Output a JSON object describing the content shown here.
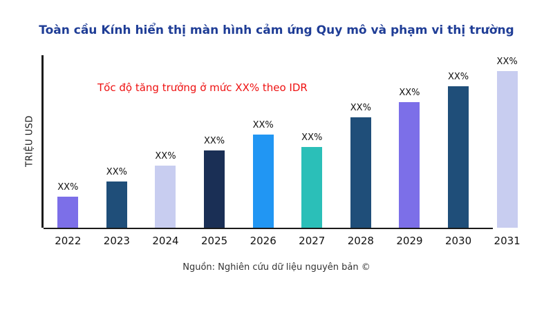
{
  "title": "Toàn cầu Kính hiển thị màn hình cảm ứng Quy mô và phạm vi thị trường",
  "annotation": "Tốc độ tăng trưởng ở mức XX% theo IDR",
  "y_axis_label": "TRIỆU USD",
  "source": "Nguồn: Nghiên cứu dữ liệu nguyên bản ©",
  "accent_colors": {
    "title_blue": "#1f3d96",
    "annotation_red": "#ee1111",
    "axis_dark": "#1a1a1a"
  },
  "chart_data": {
    "type": "bar",
    "title": "Toàn cầu Kính hiển thị màn hình cảm ứng Quy mô và phạm vi thị trường",
    "xlabel": "",
    "ylabel": "TRIỆU USD",
    "categories": [
      "2022",
      "2023",
      "2024",
      "2025",
      "2026",
      "2027",
      "2028",
      "2029",
      "2030",
      "2031"
    ],
    "values": [
      18,
      27,
      36,
      45,
      54,
      47,
      64,
      73,
      82,
      91
    ],
    "bar_labels": [
      "XX%",
      "XX%",
      "XX%",
      "XX%",
      "XX%",
      "XX%",
      "XX%",
      "XX%",
      "XX%",
      "XX%"
    ],
    "bar_colors": [
      "#7c6fe8",
      "#1f4e79",
      "#c8cdf0",
      "#1a2f55",
      "#2196f3",
      "#2bbfb8",
      "#1f4e79",
      "#7c6fe8",
      "#1f4e79",
      "#c8cdf0"
    ],
    "ylim": [
      0,
      100
    ],
    "grid": false,
    "legend": "none",
    "annotation": "Tốc độ tăng trưởng ở mức XX% theo IDR"
  }
}
